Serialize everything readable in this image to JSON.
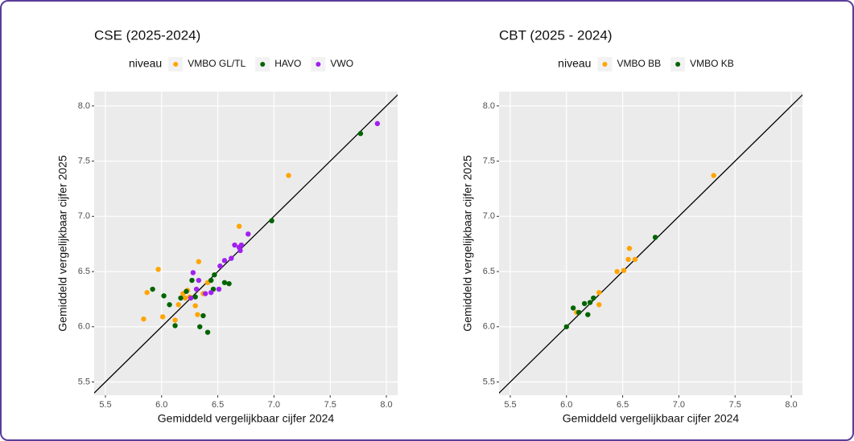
{
  "chart_data": [
    {
      "type": "scatter",
      "title": "CSE (2025-2024)",
      "x_label": "Gemiddeld vergelijkbaar cijfer 2024",
      "y_label": "Gemiddeld vergelijkbaar cijfer 2025",
      "legend_title": "niveau",
      "xlim": [
        5.4,
        8.1
      ],
      "ylim": [
        5.38,
        8.13
      ],
      "xticks": [
        5.5,
        {
          "value": 6,
          "label": "6.0"
        },
        6.5,
        {
          "value": 7,
          "label": "7.0"
        },
        7.5,
        {
          "value": 8,
          "label": "8.0"
        }
      ],
      "yticks": [
        5.5,
        {
          "value": 6,
          "label": "6.0"
        },
        6.5,
        {
          "value": 7,
          "label": "7.0"
        },
        7.5,
        {
          "value": 8,
          "label": "8.0"
        }
      ],
      "grid": true,
      "series": [
        {
          "name": "VMBO GL/TL",
          "color": "#FFA500",
          "x": [
            5.84,
            5.87,
            5.97,
            6.01,
            6.12,
            6.15,
            6.19,
            6.23,
            6.25,
            6.3,
            6.32,
            6.33,
            6.37,
            6.41,
            6.69,
            7.13,
            6.21
          ],
          "values": [
            6.07,
            6.31,
            6.52,
            6.09,
            6.06,
            6.2,
            6.3,
            6.33,
            6.27,
            6.19,
            6.11,
            6.59,
            6.3,
            6.4,
            6.91,
            7.37,
            6.26
          ]
        },
        {
          "name": "HAVO",
          "color": "#006400",
          "x": [
            5.92,
            6.02,
            6.07,
            6.12,
            6.17,
            6.27,
            6.3,
            6.34,
            6.37,
            6.41,
            6.44,
            6.47,
            6.46,
            6.56,
            6.6,
            6.98,
            7.77,
            6.22
          ],
          "values": [
            6.34,
            6.28,
            6.2,
            6.01,
            6.26,
            6.42,
            6.27,
            6.0,
            6.1,
            5.95,
            6.42,
            6.47,
            6.34,
            6.4,
            6.39,
            6.96,
            7.75,
            6.32
          ]
        },
        {
          "name": "VWO",
          "color": "#A020F0",
          "x": [
            6.28,
            6.31,
            6.33,
            6.39,
            6.44,
            6.51,
            6.52,
            6.56,
            6.62,
            6.65,
            6.69,
            6.71,
            6.7,
            6.77,
            7.92,
            6.26
          ],
          "values": [
            6.49,
            6.34,
            6.42,
            6.3,
            6.31,
            6.34,
            6.55,
            6.6,
            6.62,
            6.74,
            6.72,
            6.74,
            6.69,
            6.84,
            7.84,
            6.26
          ]
        }
      ]
    },
    {
      "type": "scatter",
      "title": "CBT (2025 - 2024)",
      "x_label": "Gemiddeld vergelijkbaar cijfer 2024",
      "y_label": "Gemiddeld vergelijkbaar cijfer 2025",
      "legend_title": "niveau",
      "xlim": [
        5.4,
        8.1
      ],
      "ylim": [
        5.38,
        8.13
      ],
      "xticks": [
        5.5,
        {
          "value": 6,
          "label": "6.0"
        },
        6.5,
        {
          "value": 7,
          "label": "7.0"
        },
        7.5,
        {
          "value": 8,
          "label": "8.0"
        }
      ],
      "yticks": [
        5.5,
        {
          "value": 6,
          "label": "6.0"
        },
        6.5,
        {
          "value": 7,
          "label": "7.0"
        },
        7.5,
        {
          "value": 8,
          "label": "8.0"
        }
      ],
      "grid": true,
      "series": [
        {
          "name": "VMBO BB",
          "color": "#FFA500",
          "x": [
            6.09,
            6.29,
            6.29,
            6.45,
            6.51,
            6.55,
            6.56,
            6.61,
            7.31
          ],
          "values": [
            6.13,
            6.2,
            6.31,
            6.5,
            6.51,
            6.61,
            6.71,
            6.61,
            7.37
          ]
        },
        {
          "name": "VMBO KB",
          "color": "#006400",
          "x": [
            6.0,
            6.06,
            6.11,
            6.16,
            6.19,
            6.21,
            6.24,
            6.79
          ],
          "values": [
            6.0,
            6.17,
            6.13,
            6.21,
            6.11,
            6.22,
            6.26,
            6.81
          ]
        }
      ]
    }
  ]
}
